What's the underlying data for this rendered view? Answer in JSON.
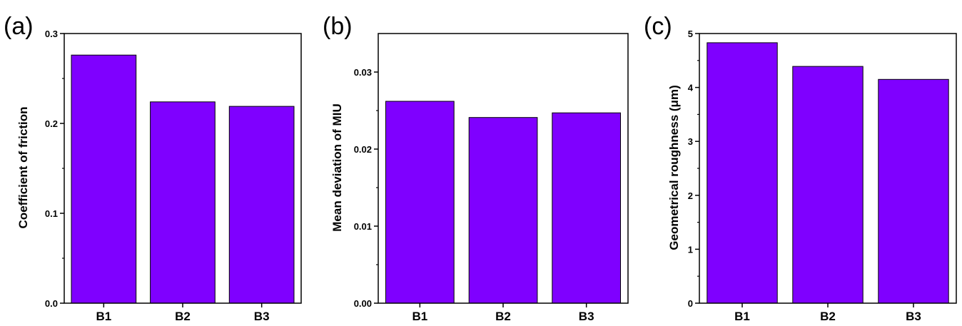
{
  "colors": {
    "bar": "#7f00ff",
    "bar_stroke": "#000000",
    "axis": "#000000"
  },
  "chart_data": [
    {
      "type": "bar",
      "panel_label": "(a)",
      "categories": [
        "B1",
        "B2",
        "B3"
      ],
      "values": [
        0.276,
        0.224,
        0.219
      ],
      "ylabel": "Coefficient of friction",
      "ylim": [
        0,
        0.3
      ],
      "yticks": [
        0.0,
        0.1,
        0.2,
        0.3
      ],
      "ytick_labels": [
        "0.0",
        "0.1",
        "0.2",
        "0.3"
      ],
      "grid": false
    },
    {
      "type": "bar",
      "panel_label": "(b)",
      "categories": [
        "B1",
        "B2",
        "B3"
      ],
      "values": [
        0.0262,
        0.0241,
        0.0247
      ],
      "ylabel": "Mean deviation of MIU",
      "ylim": [
        0,
        0.035
      ],
      "yticks": [
        0.0,
        0.01,
        0.02,
        0.03
      ],
      "ytick_labels": [
        "0.00",
        "0.01",
        "0.02",
        "0.03"
      ],
      "grid": false
    },
    {
      "type": "bar",
      "panel_label": "(c)",
      "categories": [
        "B1",
        "B2",
        "B3"
      ],
      "values": [
        4.83,
        4.39,
        4.15
      ],
      "ylabel": "Geometrical roughness (μm)",
      "ylim": [
        0,
        5
      ],
      "yticks": [
        0,
        1,
        2,
        3,
        4,
        5
      ],
      "ytick_labels": [
        "0",
        "1",
        "2",
        "3",
        "4",
        "5"
      ],
      "grid": false
    }
  ]
}
